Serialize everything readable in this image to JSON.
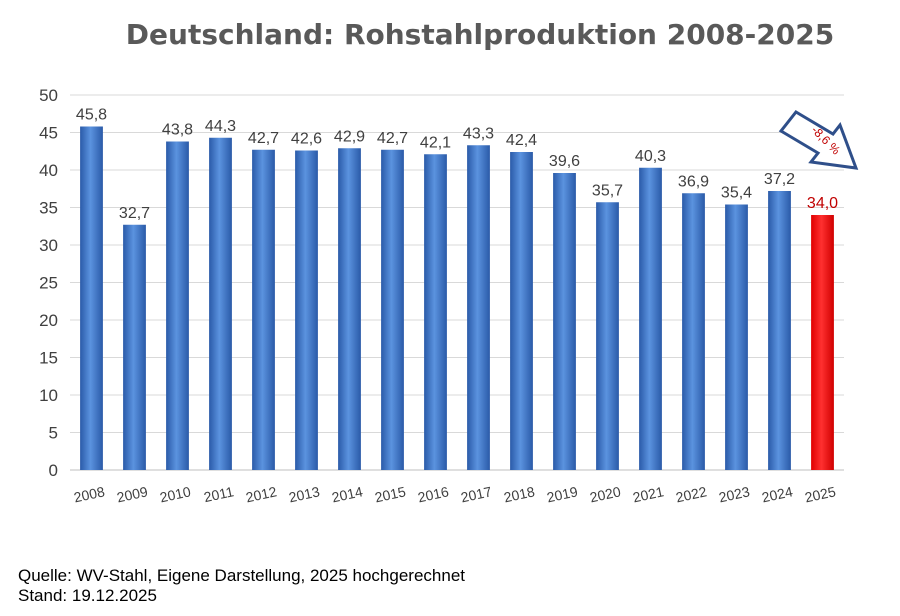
{
  "chart_data": {
    "type": "bar",
    "title": "Deutschland: Rohstahlproduktion 2008-2025",
    "xlabel": "",
    "ylabel": "",
    "ylim": [
      0,
      50
    ],
    "yticks": [
      "0",
      "5",
      "10",
      "15",
      "20",
      "25",
      "30",
      "35",
      "40",
      "45",
      "50"
    ],
    "grid": true,
    "categories": [
      "2008",
      "2009",
      "2010",
      "2011",
      "2012",
      "2013",
      "2014",
      "2015",
      "2016",
      "2017",
      "2018",
      "2019",
      "2020",
      "2021",
      "2022",
      "2023",
      "2024",
      "2025"
    ],
    "values": [
      45.8,
      32.7,
      43.8,
      44.3,
      42.7,
      42.6,
      42.9,
      42.7,
      42.1,
      43.3,
      42.4,
      39.6,
      35.7,
      40.3,
      36.9,
      35.4,
      37.2,
      34.0
    ],
    "value_labels": [
      "45,8",
      "32,7",
      "43,8",
      "44,3",
      "42,7",
      "42,6",
      "42,9",
      "42,7",
      "42,1",
      "43,3",
      "42,4",
      "39,6",
      "35,7",
      "40,3",
      "36,9",
      "35,4",
      "37,2",
      "34,0"
    ],
    "highlight_index": 17,
    "annotation": "-8,6 %",
    "colors": {
      "bar": "#3f78c6",
      "highlight": "#ff0000",
      "grid": "#d9d9d9",
      "text": "#404040",
      "annotation": "#c00000",
      "arrow": "#2f4f8a"
    }
  },
  "footer": {
    "source": "Quelle: WV-Stahl, Eigene Darstellung, 2025 hochgerechnet",
    "date": "Stand: 19.12.2025"
  }
}
